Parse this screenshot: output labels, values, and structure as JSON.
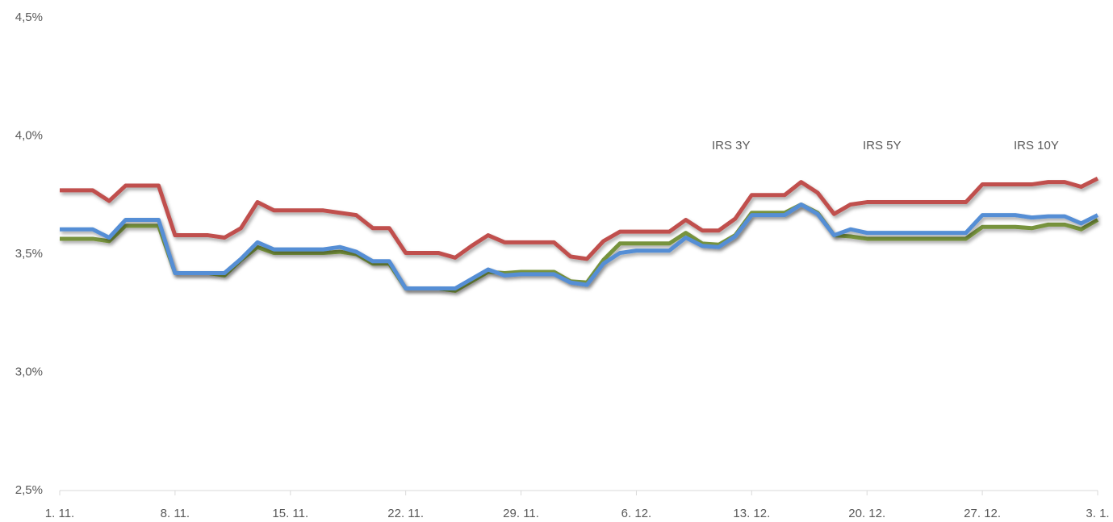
{
  "chart_data": {
    "type": "line",
    "categories": [
      "1. 11.",
      null,
      null,
      null,
      null,
      null,
      null,
      "8. 11.",
      null,
      null,
      null,
      null,
      null,
      null,
      "15. 11.",
      null,
      null,
      null,
      null,
      null,
      null,
      "22. 11.",
      null,
      null,
      null,
      null,
      null,
      null,
      "29. 11.",
      null,
      null,
      null,
      null,
      null,
      null,
      "6. 12.",
      null,
      null,
      null,
      null,
      null,
      null,
      "13. 12.",
      null,
      null,
      null,
      null,
      null,
      null,
      "20. 12.",
      null,
      null,
      null,
      null,
      null,
      null,
      "27. 12.",
      null,
      null,
      null,
      null,
      null,
      null,
      "3. 1."
    ],
    "series": [
      {
        "name": "IRS 3Y",
        "color": "#77933c",
        "values": [
          3.565,
          3.565,
          3.565,
          3.555,
          3.62,
          3.62,
          3.62,
          3.42,
          3.42,
          3.42,
          3.41,
          3.475,
          3.53,
          3.505,
          3.505,
          3.505,
          3.505,
          3.51,
          3.5,
          3.46,
          3.46,
          3.355,
          3.355,
          3.355,
          3.345,
          3.385,
          3.425,
          3.42,
          3.425,
          3.425,
          3.425,
          3.385,
          3.38,
          3.475,
          3.545,
          3.545,
          3.545,
          3.545,
          3.59,
          3.545,
          3.54,
          3.58,
          3.675,
          3.675,
          3.675,
          3.71,
          3.675,
          3.58,
          3.575,
          3.565,
          3.565,
          3.565,
          3.565,
          3.565,
          3.565,
          3.565,
          3.615,
          3.615,
          3.615,
          3.61,
          3.625,
          3.625,
          3.605,
          3.645
        ]
      },
      {
        "name": "IRS 5Y",
        "color": "#558ed5",
        "values": [
          3.605,
          3.605,
          3.605,
          3.57,
          3.645,
          3.645,
          3.645,
          3.42,
          3.42,
          3.42,
          3.42,
          3.48,
          3.55,
          3.52,
          3.52,
          3.52,
          3.52,
          3.53,
          3.51,
          3.47,
          3.47,
          3.355,
          3.355,
          3.355,
          3.355,
          3.395,
          3.435,
          3.41,
          3.415,
          3.415,
          3.415,
          3.38,
          3.37,
          3.46,
          3.505,
          3.515,
          3.515,
          3.515,
          3.57,
          3.535,
          3.53,
          3.575,
          3.665,
          3.665,
          3.665,
          3.71,
          3.67,
          3.58,
          3.605,
          3.59,
          3.59,
          3.59,
          3.59,
          3.59,
          3.59,
          3.59,
          3.665,
          3.665,
          3.665,
          3.655,
          3.66,
          3.66,
          3.63,
          3.665
        ]
      },
      {
        "name": "IRS 10Y",
        "color": "#c0504d",
        "values": [
          3.77,
          3.77,
          3.77,
          3.725,
          3.79,
          3.79,
          3.79,
          3.58,
          3.58,
          3.58,
          3.57,
          3.61,
          3.72,
          3.685,
          3.685,
          3.685,
          3.685,
          3.675,
          3.665,
          3.61,
          3.61,
          3.505,
          3.505,
          3.505,
          3.485,
          3.535,
          3.58,
          3.55,
          3.55,
          3.55,
          3.55,
          3.49,
          3.48,
          3.555,
          3.595,
          3.595,
          3.595,
          3.595,
          3.645,
          3.6,
          3.6,
          3.65,
          3.75,
          3.75,
          3.75,
          3.805,
          3.76,
          3.67,
          3.71,
          3.72,
          3.72,
          3.72,
          3.72,
          3.72,
          3.72,
          3.72,
          3.795,
          3.795,
          3.795,
          3.795,
          3.805,
          3.805,
          3.785,
          3.82
        ]
      }
    ],
    "ylim": [
      2.5,
      4.5
    ],
    "yticks": [
      {
        "value": 2.5,
        "label": "2,5%"
      },
      {
        "value": 3.0,
        "label": "3,0%"
      },
      {
        "value": 3.5,
        "label": "3,5%"
      },
      {
        "value": 4.0,
        "label": "4,0%"
      },
      {
        "value": 4.5,
        "label": "4,5%"
      }
    ],
    "grid": false,
    "legend": "top-right"
  }
}
